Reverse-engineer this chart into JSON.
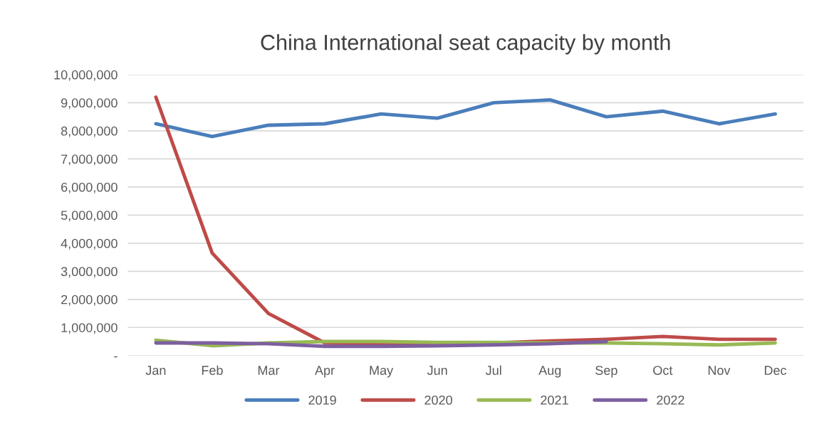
{
  "chart_data": {
    "type": "line",
    "title": "China International seat capacity by month",
    "categories": [
      "Jan",
      "Feb",
      "Mar",
      "Apr",
      "May",
      "Jun",
      "Jul",
      "Aug",
      "Sep",
      "Oct",
      "Nov",
      "Dec"
    ],
    "series": [
      {
        "name": "2019",
        "color": "#4a7ebb",
        "values": [
          8250000,
          7800000,
          8200000,
          8250000,
          8600000,
          8450000,
          9000000,
          9100000,
          8500000,
          8700000,
          8250000,
          8600000
        ]
      },
      {
        "name": "2020",
        "color": "#be4b48",
        "values": [
          9200000,
          3650000,
          1500000,
          450000,
          400000,
          420000,
          450000,
          520000,
          580000,
          680000,
          580000,
          580000
        ]
      },
      {
        "name": "2021",
        "color": "#98b954",
        "values": [
          550000,
          350000,
          450000,
          500000,
          500000,
          470000,
          470000,
          450000,
          450000,
          420000,
          380000,
          450000
        ]
      },
      {
        "name": "2022",
        "color": "#7d5fa0",
        "values": [
          450000,
          450000,
          420000,
          330000,
          330000,
          350000,
          380000,
          420000,
          500000,
          null,
          null,
          null
        ]
      }
    ],
    "ylim": [
      0,
      10000000
    ],
    "yticks": [
      {
        "value": 0,
        "label": "-"
      },
      {
        "value": 1000000,
        "label": "1,000,000"
      },
      {
        "value": 2000000,
        "label": "2,000,000"
      },
      {
        "value": 3000000,
        "label": "3,000,000"
      },
      {
        "value": 4000000,
        "label": "4,000,000"
      },
      {
        "value": 5000000,
        "label": "5,000,000"
      },
      {
        "value": 6000000,
        "label": "6,000,000"
      },
      {
        "value": 7000000,
        "label": "7,000,000"
      },
      {
        "value": 8000000,
        "label": "8,000,000"
      },
      {
        "value": 9000000,
        "label": "9,000,000"
      },
      {
        "value": 10000000,
        "label": "10,000,000"
      }
    ],
    "grid": "y",
    "legend": "bottom",
    "marker": "none",
    "line_style": "solid"
  }
}
